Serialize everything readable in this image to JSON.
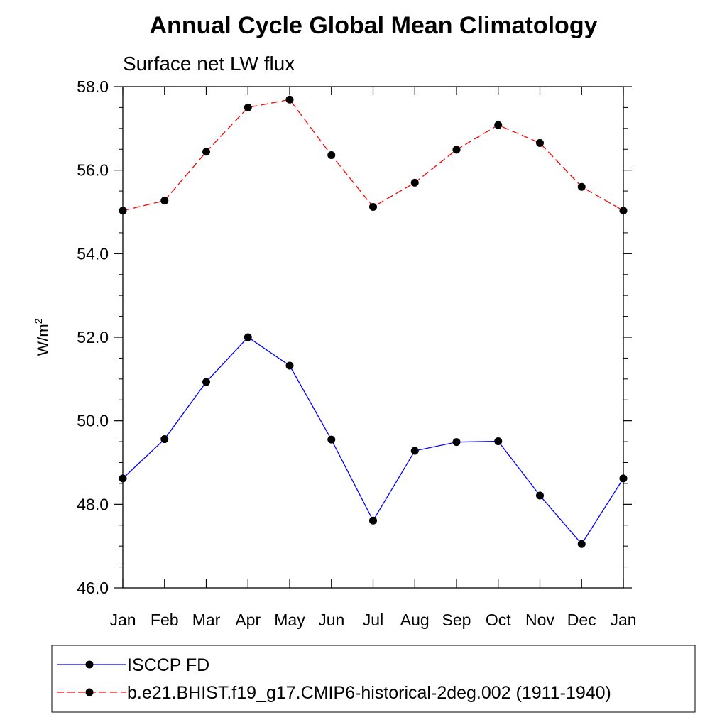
{
  "chart_data": {
    "type": "line",
    "title": "Annual Cycle Global Mean Climatology",
    "subtitle": "Surface net LW flux",
    "ylabel": "W/m",
    "ylabel_sup": "2",
    "categories": [
      "Jan",
      "Feb",
      "Mar",
      "Apr",
      "May",
      "Jun",
      "Jul",
      "Aug",
      "Sep",
      "Oct",
      "Nov",
      "Dec",
      "Jan"
    ],
    "ylim": [
      46.0,
      58.0
    ],
    "yticks": [
      "46.0",
      "48.0",
      "50.0",
      "52.0",
      "54.0",
      "56.0",
      "58.0"
    ],
    "grid": false,
    "legend_position": "bottom",
    "series": [
      {
        "name": "ISCCP FD",
        "color": "#0000ff",
        "line_style": "solid",
        "marker": "filled-circle",
        "values": [
          48.62,
          49.56,
          50.93,
          52.0,
          51.32,
          49.55,
          47.61,
          49.28,
          49.49,
          49.51,
          48.21,
          47.05,
          48.62
        ]
      },
      {
        "name": "b.e21.BHIST.f19_g17.CMIP6-historical-2deg.002 (1911-1940)",
        "color": "#ff0000",
        "line_style": "dashed",
        "marker": "filled-circle",
        "values": [
          55.03,
          55.27,
          56.44,
          57.5,
          57.69,
          56.36,
          55.12,
          55.7,
          56.49,
          57.08,
          56.65,
          55.6,
          55.03
        ]
      }
    ]
  }
}
